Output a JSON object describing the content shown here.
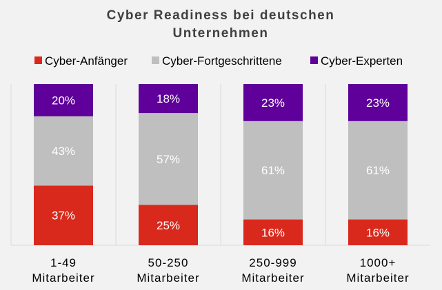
{
  "chart_data": {
    "type": "bar",
    "stacked": true,
    "title_lines": [
      "Cyber Readiness bei deutschen",
      "Unternehmen"
    ],
    "categories": [
      [
        "1-49",
        "Mitarbeiter"
      ],
      [
        "50-250",
        "Mitarbeiter"
      ],
      [
        "250-999",
        "Mitarbeiter"
      ],
      [
        "1000+",
        "Mitarbeiter"
      ]
    ],
    "series": [
      {
        "name": "Cyber-Anfänger",
        "color": "#d9291c",
        "values": [
          37,
          25,
          16,
          16
        ],
        "labels": [
          "37%",
          "25%",
          "16%",
          "16%"
        ]
      },
      {
        "name": "Cyber-Fortgeschrittene",
        "color": "#bfbfbf",
        "values": [
          43,
          57,
          61,
          61
        ],
        "labels": [
          "43%",
          "57%",
          "61%",
          "61%"
        ]
      },
      {
        "name": "Cyber-Experten",
        "color": "#5e0099",
        "values": [
          20,
          18,
          23,
          23
        ],
        "labels": [
          "20%",
          "18%",
          "23%",
          "23%"
        ]
      }
    ],
    "ylim": [
      0,
      100
    ],
    "unit": "%",
    "legend": "top",
    "grid": false
  }
}
